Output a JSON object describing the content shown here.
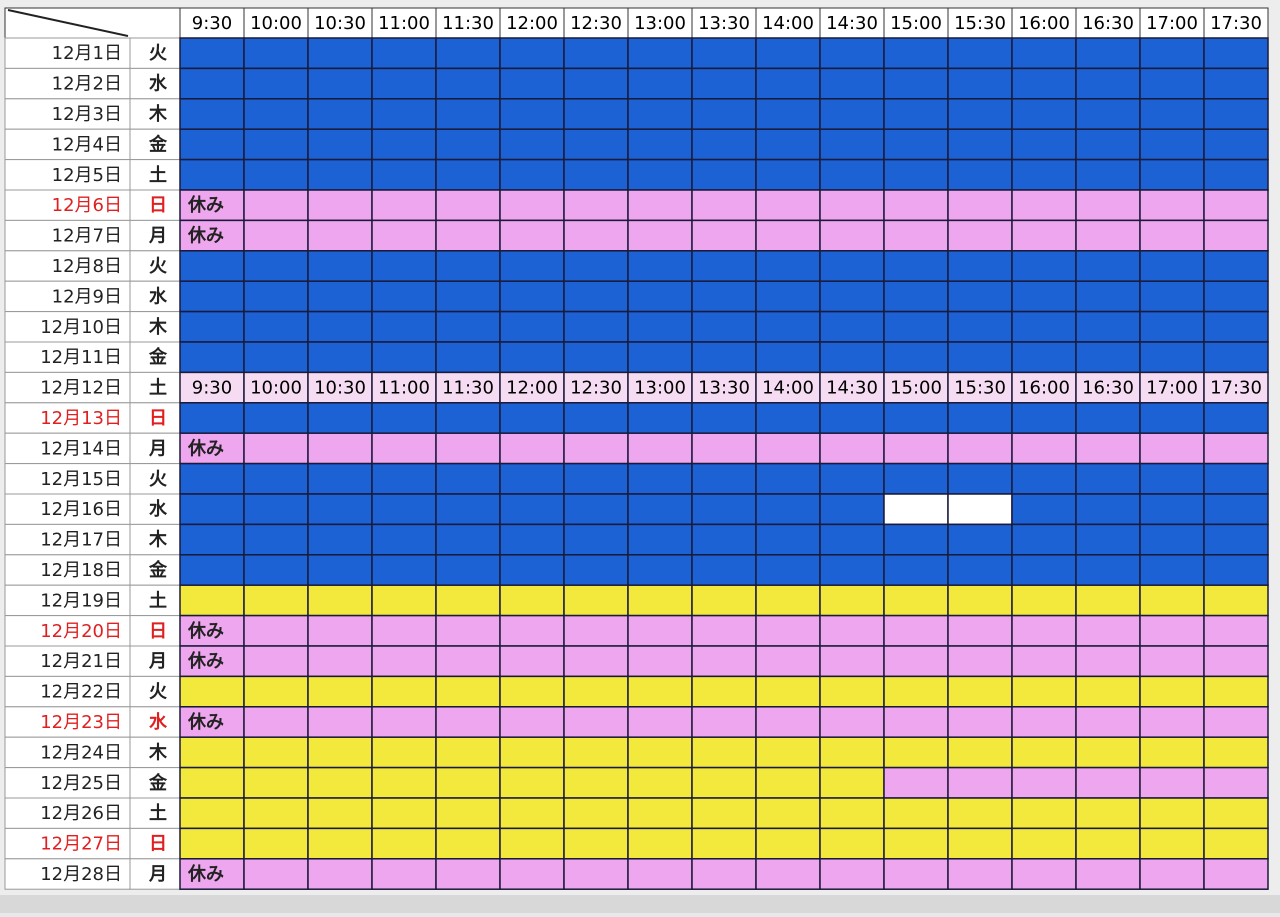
{
  "header": {
    "times": [
      "9:30",
      "10:00",
      "10:30",
      "11:00",
      "11:30",
      "12:00",
      "12:30",
      "13:00",
      "13:30",
      "14:00",
      "14:30",
      "15:00",
      "15:30",
      "16:00",
      "16:30",
      "17:00",
      "17:30"
    ]
  },
  "colors": {
    "blue": "#1c62d4",
    "pink": "#eea6ee",
    "yellow": "#f3e93c",
    "light": "#f6dcf2",
    "white": "#ffffff",
    "red": "#e02020"
  },
  "rows": [
    {
      "date": "12月1日",
      "weekday": "火",
      "fill": "blue"
    },
    {
      "date": "12月2日",
      "weekday": "水",
      "fill": "blue"
    },
    {
      "date": "12月3日",
      "weekday": "木",
      "fill": "blue"
    },
    {
      "date": "12月4日",
      "weekday": "金",
      "fill": "blue"
    },
    {
      "date": "12月5日",
      "weekday": "土",
      "fill": "blue"
    },
    {
      "date": "12月6日",
      "weekday": "日",
      "fill": "pink",
      "red": true,
      "note": "休み"
    },
    {
      "date": "12月7日",
      "weekday": "月",
      "fill": "pink",
      "note": "休み"
    },
    {
      "date": "12月8日",
      "weekday": "火",
      "fill": "blue"
    },
    {
      "date": "12月9日",
      "weekday": "水",
      "fill": "blue"
    },
    {
      "date": "12月10日",
      "weekday": "木",
      "fill": "blue"
    },
    {
      "date": "12月11日",
      "weekday": "金",
      "fill": "blue"
    },
    {
      "date": "12月12日",
      "weekday": "土",
      "fill": "light",
      "cells": [
        "9:30",
        "10:00",
        "10:30",
        "11:00",
        "11:30",
        "12:00",
        "12:30",
        "13:00",
        "13:30",
        "14:00",
        "14:30",
        "15:00",
        "15:30",
        "16:00",
        "16:30",
        "17:00",
        "17:30"
      ]
    },
    {
      "date": "12月13日",
      "weekday": "日",
      "fill": "blue",
      "red": true
    },
    {
      "date": "12月14日",
      "weekday": "月",
      "fill": "pink",
      "note": "休み"
    },
    {
      "date": "12月15日",
      "weekday": "火",
      "fill": "blue"
    },
    {
      "date": "12月16日",
      "weekday": "水",
      "fill": "blue",
      "cell_fills": {
        "11": "white",
        "12": "white"
      }
    },
    {
      "date": "12月17日",
      "weekday": "木",
      "fill": "blue"
    },
    {
      "date": "12月18日",
      "weekday": "金",
      "fill": "blue"
    },
    {
      "date": "12月19日",
      "weekday": "土",
      "fill": "yellow"
    },
    {
      "date": "12月20日",
      "weekday": "日",
      "fill": "pink",
      "red": true,
      "note": "休み"
    },
    {
      "date": "12月21日",
      "weekday": "月",
      "fill": "pink",
      "note": "休み"
    },
    {
      "date": "12月22日",
      "weekday": "火",
      "fill": "yellow"
    },
    {
      "date": "12月23日",
      "weekday": "水",
      "fill": "pink",
      "red": true,
      "note": "休み"
    },
    {
      "date": "12月24日",
      "weekday": "木",
      "fill": "yellow"
    },
    {
      "date": "12月25日",
      "weekday": "金",
      "fill": "yellow",
      "cell_fills": {
        "11": "pink",
        "12": "pink",
        "13": "pink",
        "14": "pink",
        "15": "pink",
        "16": "pink"
      }
    },
    {
      "date": "12月26日",
      "weekday": "土",
      "fill": "yellow"
    },
    {
      "date": "12月27日",
      "weekday": "日",
      "fill": "yellow",
      "red": true
    },
    {
      "date": "12月28日",
      "weekday": "月",
      "fill": "pink",
      "note": "休み"
    }
  ]
}
